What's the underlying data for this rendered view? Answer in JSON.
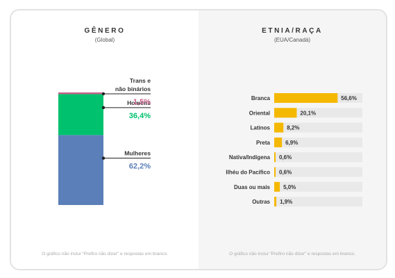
{
  "gender_panel": {
    "title": "GÊNERO",
    "subtitle": "(Global)",
    "footnote": "O gráfico não inclui “Prefiro não dizer” e respostas em branco."
  },
  "ethnicity_panel": {
    "title": "ETNIA/RAÇA",
    "subtitle": "(EUA/Canadá)",
    "footnote": "O gráfico não inclui “Prefiro não dizer” e respostas em branco."
  },
  "chart_data": [
    {
      "type": "bar",
      "stacked": true,
      "title": "GÊNERO",
      "subtitle": "(Global)",
      "series": [
        {
          "label_lines": [
            "Mulheres"
          ],
          "value": 62.2,
          "value_label": "62,2%",
          "color": "#5b7fb8"
        },
        {
          "label_lines": [
            "Homens"
          ],
          "value": 36.4,
          "value_label": "36,4%",
          "color": "#00c16e"
        },
        {
          "label_lines": [
            "Trans e",
            "não binários"
          ],
          "value": 1.5,
          "value_label": "1,5%",
          "color": "#c8608a"
        }
      ]
    },
    {
      "type": "bar",
      "orientation": "horizontal",
      "title": "ETNIA/RAÇA",
      "subtitle": "(EUA/Canadá)",
      "categories": [
        "Branca",
        "Oriental",
        "Latinos",
        "Preta",
        "Nativa/Indígena",
        "Ilhéu do Pacífico",
        "Duas ou mais",
        "Outras"
      ],
      "values": [
        56.6,
        20.1,
        8.2,
        6.9,
        0.6,
        0.6,
        5.0,
        1.9
      ],
      "value_labels": [
        "56,6%",
        "20,1%",
        "8,2%",
        "6,9%",
        "0,6%",
        "0,6%",
        "5,0%",
        "1,9%"
      ],
      "xlim": [
        0,
        100
      ],
      "bar_color": "#f5b800",
      "track_color": "#e9e9e9"
    }
  ]
}
